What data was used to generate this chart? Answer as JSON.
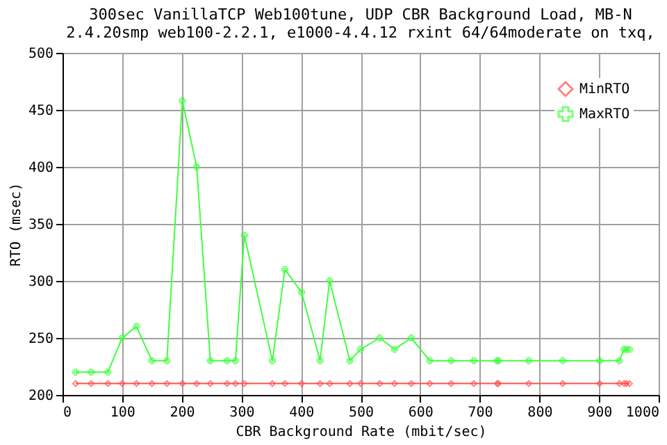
{
  "chart_data": {
    "type": "line",
    "title": "300sec VanillaTCP Web100tune, UDP CBR Background Load, MB-N\n2.4.20smp web100-2.2.1, e1000-4.4.12 rxint 64/64moderate on txq,",
    "xlabel": "CBR Background Rate (mbit/sec)",
    "ylabel": "RTO (msec)",
    "x": [
      22,
      48,
      76,
      100,
      124,
      150,
      175,
      201,
      225,
      248,
      276,
      290,
      305,
      352,
      373,
      401,
      432,
      448,
      482,
      500,
      532,
      557,
      585,
      616,
      652,
      690,
      729,
      731,
      782,
      839,
      901,
      934,
      942,
      946,
      951
    ],
    "series": [
      {
        "name": "MinRTO",
        "color": "#ff5050",
        "marker": "diamond",
        "values": [
          210,
          210,
          210,
          210,
          210,
          210,
          210,
          210,
          210,
          210,
          210,
          210,
          210,
          210,
          210,
          210,
          210,
          210,
          210,
          210,
          210,
          210,
          210,
          210,
          210,
          210,
          210,
          210,
          210,
          210,
          210,
          210,
          210,
          210,
          210
        ]
      },
      {
        "name": "MaxRTO",
        "color": "#40ff40",
        "marker": "cross",
        "values": [
          220,
          220,
          220,
          250,
          260,
          230,
          230,
          458,
          400,
          230,
          230,
          230,
          340,
          230,
          310,
          290,
          230,
          300,
          230,
          240,
          250,
          240,
          250,
          230,
          230,
          230,
          230,
          230,
          230,
          230,
          230,
          230,
          240,
          240,
          240
        ]
      }
    ],
    "xlim": [
      0,
      1000
    ],
    "xticks": [
      0,
      100,
      200,
      300,
      400,
      500,
      600,
      700,
      800,
      900,
      1000
    ],
    "ylim": [
      200,
      500
    ],
    "yticks": [
      200,
      250,
      300,
      350,
      400,
      450,
      500
    ],
    "grid": true,
    "legend": "top right",
    "line_style": "solid"
  }
}
